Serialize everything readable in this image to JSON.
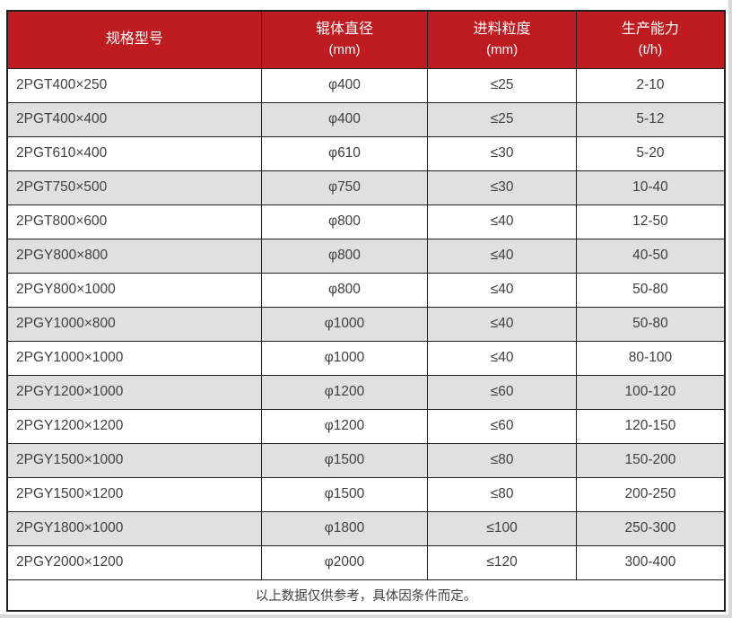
{
  "colors": {
    "header_bg": "#be1c20",
    "header_text": "#ffffff",
    "row_bg": "#ffffff",
    "row_alt_bg": "#e0e0e0",
    "border": "#1f1f1f",
    "text": "#3f3f3f",
    "edge": "#d9d9d9"
  },
  "table": {
    "columns": [
      {
        "title": "规格型号",
        "unit": ""
      },
      {
        "title": "辊体直径",
        "unit": "(mm)"
      },
      {
        "title": "进料粒度",
        "unit": "(mm)"
      },
      {
        "title": "生产能力",
        "unit": "(t/h)"
      }
    ],
    "rows": [
      {
        "model": "2PGT400×250",
        "diameter": "φ400",
        "feed": "≤25",
        "capacity": "2-10"
      },
      {
        "model": "2PGT400×400",
        "diameter": "φ400",
        "feed": "≤25",
        "capacity": "5-12"
      },
      {
        "model": "2PGT610×400",
        "diameter": "φ610",
        "feed": "≤30",
        "capacity": "5-20"
      },
      {
        "model": "2PGT750×500",
        "diameter": "φ750",
        "feed": "≤30",
        "capacity": "10-40"
      },
      {
        "model": "2PGT800×600",
        "diameter": "φ800",
        "feed": "≤40",
        "capacity": "12-50"
      },
      {
        "model": "2PGY800×800",
        "diameter": "φ800",
        "feed": "≤40",
        "capacity": "40-50"
      },
      {
        "model": "2PGY800×1000",
        "diameter": "φ800",
        "feed": "≤40",
        "capacity": "50-80"
      },
      {
        "model": "2PGY1000×800",
        "diameter": "φ1000",
        "feed": "≤40",
        "capacity": "50-80"
      },
      {
        "model": "2PGY1000×1000",
        "diameter": "φ1000",
        "feed": "≤40",
        "capacity": "80-100"
      },
      {
        "model": "2PGY1200×1000",
        "diameter": "φ1200",
        "feed": "≤60",
        "capacity": "100-120"
      },
      {
        "model": "2PGY1200×1200",
        "diameter": "φ1200",
        "feed": "≤60",
        "capacity": "120-150"
      },
      {
        "model": "2PGY1500×1000",
        "diameter": "φ1500",
        "feed": "≤80",
        "capacity": "150-200"
      },
      {
        "model": "2PGY1500×1200",
        "diameter": "φ1500",
        "feed": "≤80",
        "capacity": "200-250"
      },
      {
        "model": "2PGY1800×1000",
        "diameter": "φ1800",
        "feed": "≤100",
        "capacity": "250-300"
      },
      {
        "model": "2PGY2000×1200",
        "diameter": "φ2000",
        "feed": "≤120",
        "capacity": "300-400"
      }
    ],
    "footnote": "以上数据仅供参考，具体因条件而定。"
  }
}
